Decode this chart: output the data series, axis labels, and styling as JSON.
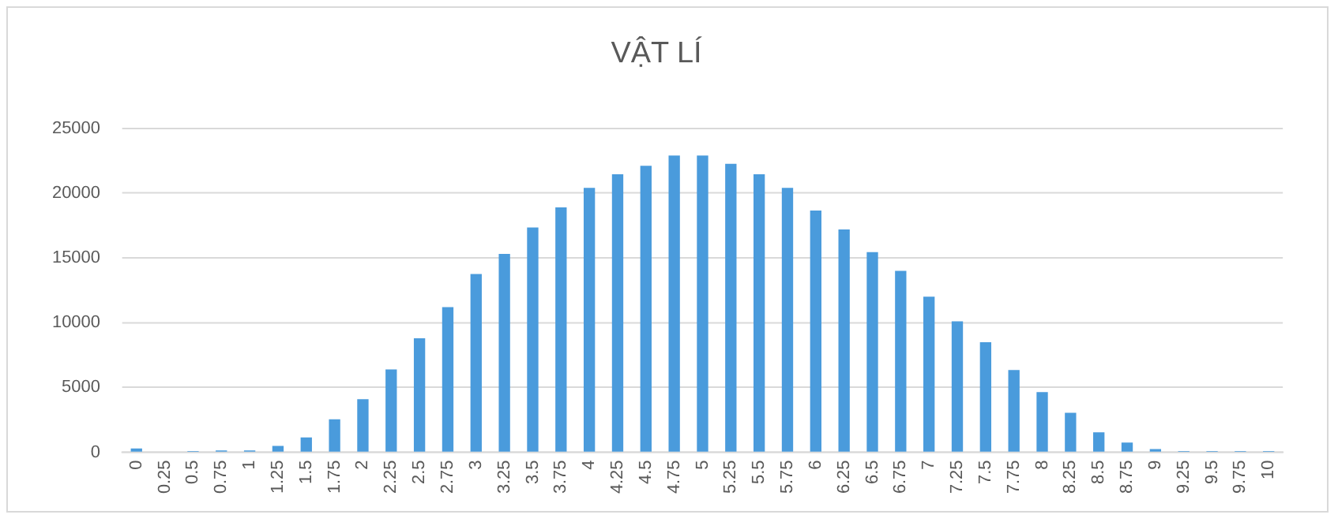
{
  "chart_data": {
    "type": "bar",
    "title": "VẬT LÍ",
    "categories": [
      "0",
      "0.25",
      "0.5",
      "0.75",
      "1",
      "1.25",
      "1.5",
      "1.75",
      "2",
      "2.25",
      "2.5",
      "2.75",
      "3",
      "3.25",
      "3.5",
      "3.75",
      "4",
      "4.25",
      "4.5",
      "4.75",
      "5",
      "5.25",
      "5.5",
      "5.75",
      "6",
      "6.25",
      "6.5",
      "6.75",
      "7",
      "7.25",
      "7.5",
      "7.75",
      "8",
      "8.25",
      "8.5",
      "8.75",
      "9",
      "9.25",
      "9.5",
      "9.75",
      "10"
    ],
    "values": [
      300,
      0,
      100,
      150,
      150,
      500,
      1150,
      2550,
      4100,
      6400,
      8800,
      11200,
      13750,
      15300,
      17350,
      18900,
      20400,
      21450,
      22100,
      22900,
      22900,
      22250,
      21450,
      20400,
      18650,
      17200,
      15450,
      14000,
      12000,
      10100,
      8500,
      6350,
      4650,
      3050,
      1550,
      750,
      250,
      100,
      100,
      100,
      100
    ],
    "color": "#4a9bdc",
    "ylim": [
      0,
      25000
    ],
    "yticks": [
      0,
      5000,
      10000,
      15000,
      20000,
      25000
    ],
    "grid": "y"
  }
}
